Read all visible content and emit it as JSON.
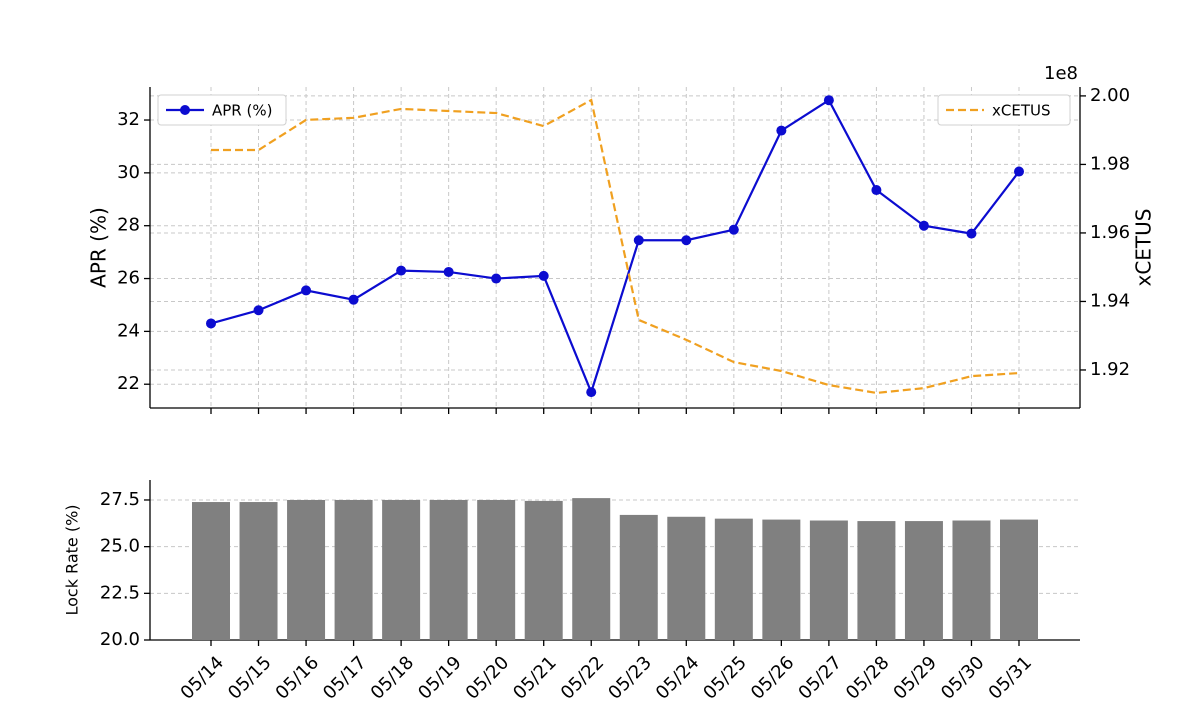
{
  "chart_data": [
    {
      "type": "line",
      "ylabel": "APR (%)",
      "y2label": "xCETUS",
      "y2_offset": "1e8",
      "ylim": [
        21.1,
        33.25
      ],
      "yticks": [
        22,
        24,
        26,
        28,
        30,
        32
      ],
      "y2lim": [
        1.9089,
        2.0026
      ],
      "y2ticks": [
        1.92,
        1.94,
        1.96,
        1.98,
        {
          "value": 2,
          "label": "2.00"
        }
      ],
      "grid": true,
      "series": [
        {
          "name": "APR (%)",
          "color": "#0c0cd0",
          "marker": "circle",
          "linestyle": "solid",
          "legend": "upper left",
          "values": [
            24.3,
            24.8,
            25.55,
            25.2,
            26.3,
            26.25,
            26.0,
            26.1,
            21.7,
            27.45,
            27.45,
            27.85,
            31.6,
            32.75,
            29.35,
            28.0,
            27.7,
            30.05
          ]
        },
        {
          "name": "xCETUS",
          "color": "#f0a020",
          "axis": "y2",
          "linestyle": "dashed",
          "legend": "upper right",
          "values": [
            1.9842,
            1.9842,
            1.993,
            1.9936,
            1.9962,
            1.9956,
            1.995,
            1.9912,
            1.9988,
            1.9346,
            1.9288,
            1.9223,
            1.9197,
            1.9156,
            1.9133,
            1.9147,
            1.9182,
            1.9191
          ]
        }
      ]
    },
    {
      "type": "bar",
      "ylabel": "Lock Rate (%)",
      "color": "#808080",
      "categories": [
        "05/14",
        "05/15",
        "05/16",
        "05/17",
        "05/18",
        "05/19",
        "05/20",
        "05/21",
        "05/22",
        "05/23",
        "05/24",
        "05/25",
        "05/26",
        "05/27",
        "05/28",
        "05/29",
        "05/30",
        "05/31"
      ],
      "values": [
        27.39,
        27.39,
        27.5,
        27.5,
        27.5,
        27.5,
        27.5,
        27.45,
        27.6,
        26.7,
        26.6,
        26.5,
        26.45,
        26.4,
        26.37,
        26.37,
        26.4,
        26.45
      ],
      "ylim": [
        20,
        28.57
      ],
      "yticks": [
        {
          "value": 20,
          "label": "20.0"
        },
        22.5,
        {
          "value": 25,
          "label": "25.0"
        },
        27.5
      ],
      "grid": true
    }
  ]
}
